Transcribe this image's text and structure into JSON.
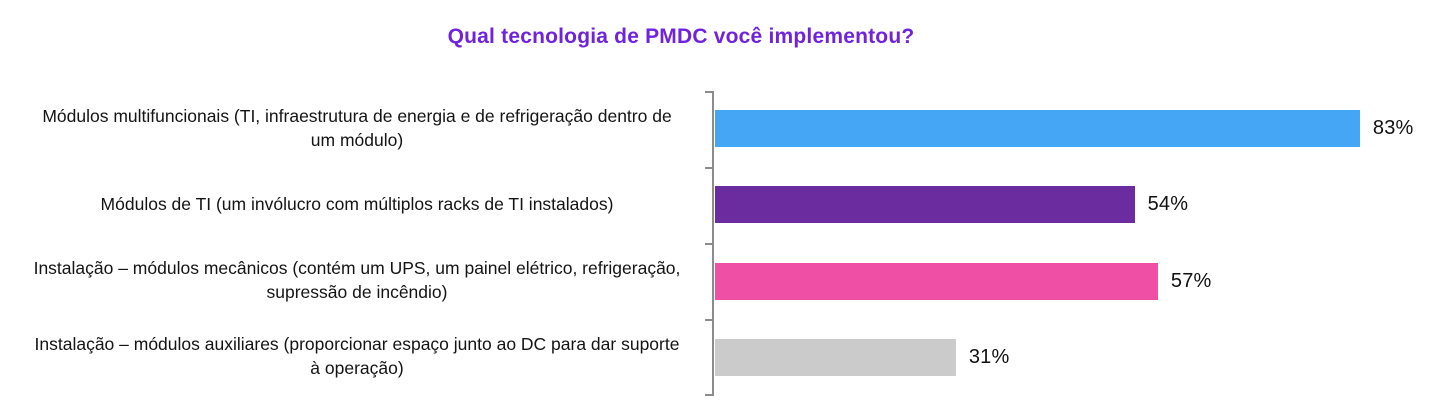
{
  "title": "Qual tecnologia de PMDC você implementou?",
  "colors": {
    "title": "#7023DC",
    "axis": "#8C8C8C",
    "label_text": "#141414",
    "bar_blue": "#44A6F4",
    "bar_purple": "#6A2C9F",
    "bar_pink": "#EF4FA5",
    "bar_gray": "#CBCBCB"
  },
  "chart_data": {
    "type": "bar",
    "orientation": "horizontal",
    "title": "Qual tecnologia de PMDC você implementou?",
    "categories": [
      "Módulos multifuncionais (TI, infraestrutura de energia e de refrigeração dentro de um módulo)",
      "Módulos de TI (um invólucro com múltiplos racks de TI instalados)",
      "Instalação – módulos mecânicos (contém um UPS, um painel elétrico, refrigeração, supressão de incêndio)",
      "Instalação – módulos auxiliares (proporcionar espaço junto ao DC para dar suporte à operação)"
    ],
    "values": [
      83,
      54,
      57,
      31
    ],
    "value_labels": [
      "83%",
      "54%",
      "57%",
      "31%"
    ],
    "bar_colors": [
      "#44A6F4",
      "#6A2C9F",
      "#EF4FA5",
      "#CBCBCB"
    ],
    "xlim": [
      0,
      100
    ],
    "grid": false,
    "legend": "none"
  }
}
